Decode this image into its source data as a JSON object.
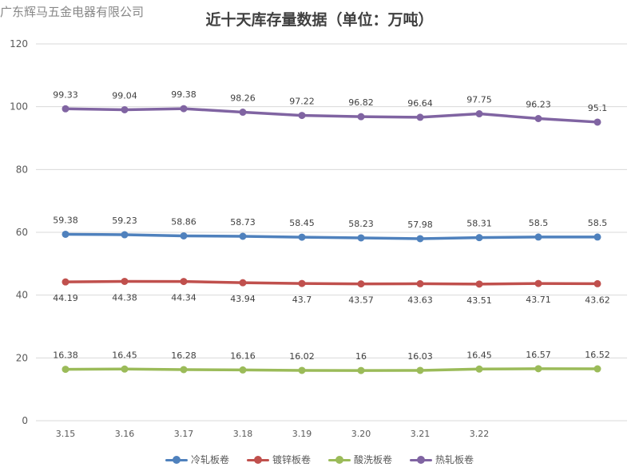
{
  "watermark": "广东辉马五金电器有限公司",
  "chart_data": {
    "type": "line",
    "title": "近十天库存量数据（单位：万吨）",
    "xlabel": "",
    "ylabel": "",
    "ylim": [
      0,
      120
    ],
    "yticks": [
      "0",
      "20",
      "40",
      "60",
      "80",
      "100",
      "120"
    ],
    "categories": [
      "3.15",
      "3.16",
      "3.17",
      "3.18",
      "3.19",
      "3.20",
      "3.21",
      "3.22",
      "",
      ""
    ],
    "grid": true,
    "legend_position": "bottom",
    "series": [
      {
        "name": "冷轧板卷",
        "color": "#4f81bd",
        "label_position": "above",
        "values": [
          59.38,
          59.23,
          58.86,
          58.73,
          58.45,
          58.23,
          57.98,
          58.31,
          58.5,
          58.5
        ],
        "labels": [
          "59.38",
          "59.23",
          "58.86",
          "58.73",
          "58.45",
          "58.23",
          "57.98",
          "58.31",
          "58.5",
          "58.5"
        ]
      },
      {
        "name": "镀锌板卷",
        "color": "#c0504d",
        "label_position": "below",
        "values": [
          44.19,
          44.38,
          44.34,
          43.94,
          43.7,
          43.57,
          43.63,
          43.51,
          43.71,
          43.62
        ],
        "labels": [
          "44.19",
          "44.38",
          "44.34",
          "43.94",
          "43.7",
          "43.57",
          "43.63",
          "43.51",
          "43.71",
          "43.62"
        ]
      },
      {
        "name": "酸洗板卷",
        "color": "#9bbb59",
        "label_position": "above",
        "values": [
          16.38,
          16.45,
          16.28,
          16.16,
          16.02,
          16,
          16.03,
          16.45,
          16.57,
          16.52
        ],
        "labels": [
          "16.38",
          "16.45",
          "16.28",
          "16.16",
          "16.02",
          "16",
          "16.03",
          "16.45",
          "16.57",
          "16.52"
        ]
      },
      {
        "name": "热轧板卷",
        "color": "#8064a2",
        "label_position": "above",
        "values": [
          99.33,
          99.04,
          99.38,
          98.26,
          97.22,
          96.82,
          96.64,
          97.75,
          96.23,
          95.1
        ],
        "labels": [
          "99.33",
          "99.04",
          "99.38",
          "98.26",
          "97.22",
          "96.82",
          "96.64",
          "97.75",
          "96.23",
          "95.1"
        ]
      }
    ]
  }
}
